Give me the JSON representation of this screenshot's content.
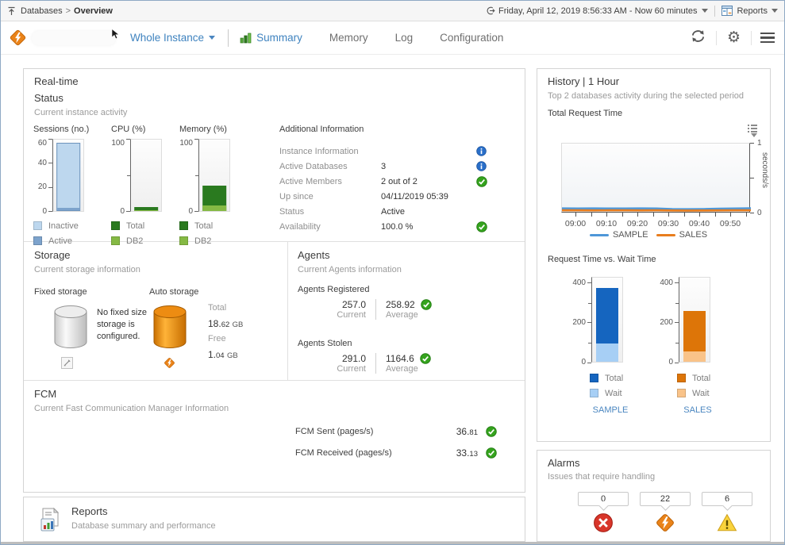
{
  "topbar": {
    "breadcrumb": {
      "root": "Databases",
      "separator": ">",
      "current": "Overview"
    },
    "timerange_label": "Friday, April 12, 2019 8:56:33 AM - Now 60 minutes",
    "reports_label": "Reports"
  },
  "header": {
    "scope_label": "Whole Instance",
    "tabs": [
      {
        "label": "Summary",
        "active": true,
        "icon": "summary-chart-icon"
      },
      {
        "label": "Memory",
        "active": false
      },
      {
        "label": "Log",
        "active": false
      },
      {
        "label": "Configuration",
        "active": false
      }
    ]
  },
  "realtime": {
    "panel_title": "Real-time",
    "section_title": "Status",
    "section_desc": "Current instance activity",
    "mini_charts": [
      {
        "title": "Sessions (no.)",
        "ymax": 60,
        "ticks": [
          "0",
          "20",
          "40",
          "60"
        ],
        "top": {
          "label": "Inactive",
          "value": 56,
          "color": "#bdd7ee"
        },
        "bottom": {
          "label": "Active",
          "value": 2,
          "color": "#7da3cc"
        },
        "bar_border": "#6d94bd"
      },
      {
        "title": "CPU (%)",
        "ymax": 100,
        "ticks": [
          "0",
          "100"
        ],
        "top": {
          "label": "Total",
          "value": 5,
          "color": "#2a7a1f"
        },
        "bottom": {
          "label": "DB2",
          "value": 1,
          "color": "#85b944"
        },
        "bar_border": ""
      },
      {
        "title": "Memory (%)",
        "ymax": 100,
        "ticks": [
          "0",
          "100"
        ],
        "top": {
          "label": "Total",
          "value": 35,
          "color": "#2a7a1f"
        },
        "bottom": {
          "label": "DB2",
          "value": 8,
          "color": "#85b944"
        },
        "bar_border": ""
      }
    ],
    "additional_info": {
      "title": "Additional Information",
      "rows": [
        {
          "label": "Instance Information",
          "value": "",
          "icon": "info"
        },
        {
          "label": "Active Databases",
          "value": "3",
          "icon": "info"
        },
        {
          "label": "Active Members",
          "value": "2 out of 2",
          "icon": "ok"
        },
        {
          "label": "Up since",
          "value": "04/11/2019 05:39",
          "icon": "none"
        },
        {
          "label": "Status",
          "value": "Active",
          "icon": "none"
        },
        {
          "label": "Availability",
          "value": "100.0 %",
          "icon": "ok"
        }
      ]
    }
  },
  "storage": {
    "title": "Storage",
    "subtitle": "Current storage information",
    "fixed": {
      "label": "Fixed storage",
      "message": "No fixed size storage is configured."
    },
    "auto": {
      "label": "Auto storage",
      "total_label": "Total",
      "total_main": "18.",
      "total_frac": "62",
      "total_unit": "GB",
      "free_label": "Free",
      "free_main": "1.",
      "free_frac": "04",
      "free_unit": "GB"
    }
  },
  "agents": {
    "title": "Agents",
    "subtitle": "Current Agents information",
    "registered": {
      "label": "Agents Registered",
      "current": "257.0",
      "average": "258.92",
      "current_label": "Current",
      "average_label": "Average"
    },
    "stolen": {
      "label": "Agents Stolen",
      "current": "291.0",
      "average": "1164.6",
      "current_label": "Current",
      "average_label": "Average"
    }
  },
  "fcm": {
    "title": "FCM",
    "subtitle": "Current Fast Communication Manager Information",
    "rows": [
      {
        "label": "FCM Sent (pages/s)",
        "value_main": "36.",
        "value_frac": "81"
      },
      {
        "label": "FCM Received (pages/s)",
        "value_main": "33.",
        "value_frac": "13"
      }
    ]
  },
  "reports_panel": {
    "title": "Reports",
    "subtitle": "Database summary and performance"
  },
  "history": {
    "title": "History | 1 Hour",
    "subtitle": "Top 2 databases activity during the selected period",
    "line_chart": {
      "type": "line",
      "title": "Total Request Time",
      "x_labels": [
        "09:00",
        "09:10",
        "09:20",
        "09:30",
        "09:40",
        "09:50"
      ],
      "ylabel": "seconds/s",
      "ymax": 1,
      "y_tick_labels": [
        "0",
        "1"
      ],
      "series": [
        {
          "name": "SAMPLE",
          "color": "#4e97d8",
          "values": [
            0.072,
            0.071,
            0.072,
            0.07,
            0.071,
            0.072,
            0.07,
            0.063,
            0.06,
            0.062,
            0.067,
            0.071,
            0.073
          ]
        },
        {
          "name": "SALES",
          "color": "#e87d1e",
          "values": [
            0.044,
            0.044,
            0.043,
            0.044,
            0.044,
            0.043,
            0.044,
            0.042,
            0.041,
            0.042,
            0.043,
            0.044,
            0.044
          ]
        }
      ]
    },
    "bars_title": "Request Time vs. Wait Time",
    "bar_charts": [
      {
        "name": "SAMPLE",
        "ymax": 430,
        "tick_values": [
          0,
          200,
          400
        ],
        "total": 370,
        "wait": 90,
        "total_label": "Total",
        "wait_label": "Wait",
        "total_color": "#1565bf",
        "wait_color": "#a7cff5"
      },
      {
        "name": "SALES",
        "ymax": 430,
        "tick_values": [
          0,
          200,
          400
        ],
        "total": 255,
        "wait": 50,
        "total_label": "Total",
        "wait_label": "Wait",
        "total_color": "#dd7508",
        "wait_color": "#f9c389"
      }
    ]
  },
  "alarms": {
    "title": "Alarms",
    "subtitle": "Issues that require handling",
    "items": [
      {
        "count": "0",
        "severity": "fatal"
      },
      {
        "count": "22",
        "severity": "critical"
      },
      {
        "count": "6",
        "severity": "warning"
      }
    ]
  }
}
